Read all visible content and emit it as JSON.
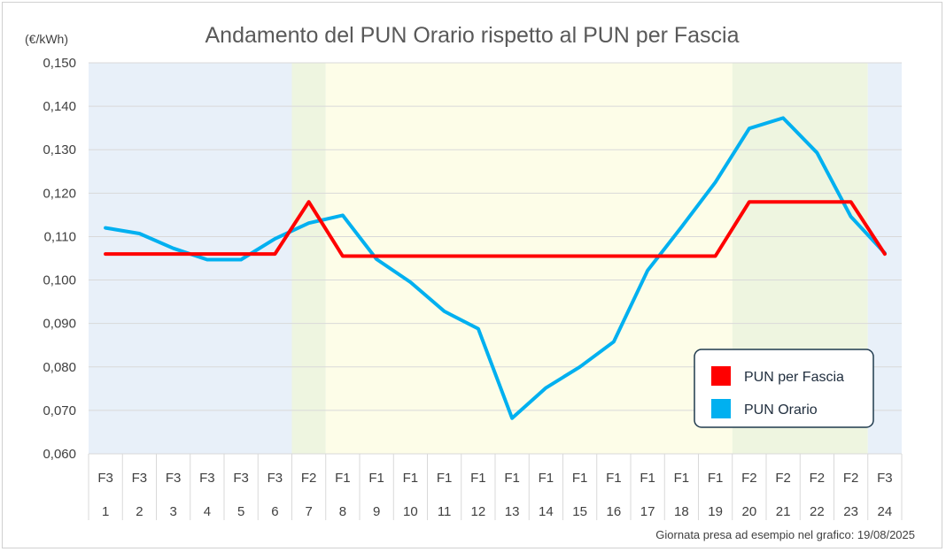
{
  "chart_data": {
    "type": "line",
    "title": "Andamento del PUN Orario rispetto al PUN per Fascia",
    "ylabel": "(€/kWh)",
    "footnote": "Giornata presa ad esempio nel grafico: 19/08/2025",
    "ylim": [
      0.06,
      0.15
    ],
    "yticks": [
      {
        "value": 0.15,
        "label": "0,150"
      },
      {
        "value": 0.14,
        "label": "0,140"
      },
      {
        "value": 0.13,
        "label": "0,130"
      },
      {
        "value": 0.12,
        "label": "0,120"
      },
      {
        "value": 0.11,
        "label": "0,110"
      },
      {
        "value": 0.1,
        "label": "0,100"
      },
      {
        "value": 0.09,
        "label": "0,090"
      },
      {
        "value": 0.08,
        "label": "0,080"
      },
      {
        "value": 0.07,
        "label": "0,070"
      },
      {
        "value": 0.06,
        "label": "0,060"
      }
    ],
    "grid": true,
    "legend_position": "right",
    "hours": [
      "1",
      "2",
      "3",
      "4",
      "5",
      "6",
      "7",
      "8",
      "9",
      "10",
      "11",
      "12",
      "13",
      "14",
      "15",
      "16",
      "17",
      "18",
      "19",
      "20",
      "21",
      "22",
      "23",
      "24"
    ],
    "fasce": [
      "F3",
      "F3",
      "F3",
      "F3",
      "F3",
      "F3",
      "F2",
      "F1",
      "F1",
      "F1",
      "F1",
      "F1",
      "F1",
      "F1",
      "F1",
      "F1",
      "F1",
      "F1",
      "F1",
      "F2",
      "F2",
      "F2",
      "F2",
      "F3"
    ],
    "band_colors": {
      "F1": "#fdfde8",
      "F2": "#eef5e0",
      "F3": "#e8f0f9"
    },
    "series": [
      {
        "name": "PUN per Fascia",
        "color": "#ff0000",
        "values": [
          0.106,
          0.106,
          0.106,
          0.106,
          0.106,
          0.106,
          0.118,
          0.1055,
          0.1055,
          0.1055,
          0.1055,
          0.1055,
          0.1055,
          0.1055,
          0.1055,
          0.1055,
          0.1055,
          0.1055,
          0.1055,
          0.118,
          0.118,
          0.118,
          0.118,
          0.106
        ]
      },
      {
        "name": "PUN Orario",
        "color": "#00b0f0",
        "values": [
          0.112,
          0.1107,
          0.1073,
          0.1047,
          0.1047,
          0.1095,
          0.1131,
          0.1149,
          0.1048,
          0.0995,
          0.0928,
          0.0888,
          0.0682,
          0.0752,
          0.08,
          0.0858,
          0.1022,
          0.1122,
          0.1225,
          0.1349,
          0.1373,
          0.1293,
          0.1146,
          0.1062
        ]
      }
    ]
  }
}
